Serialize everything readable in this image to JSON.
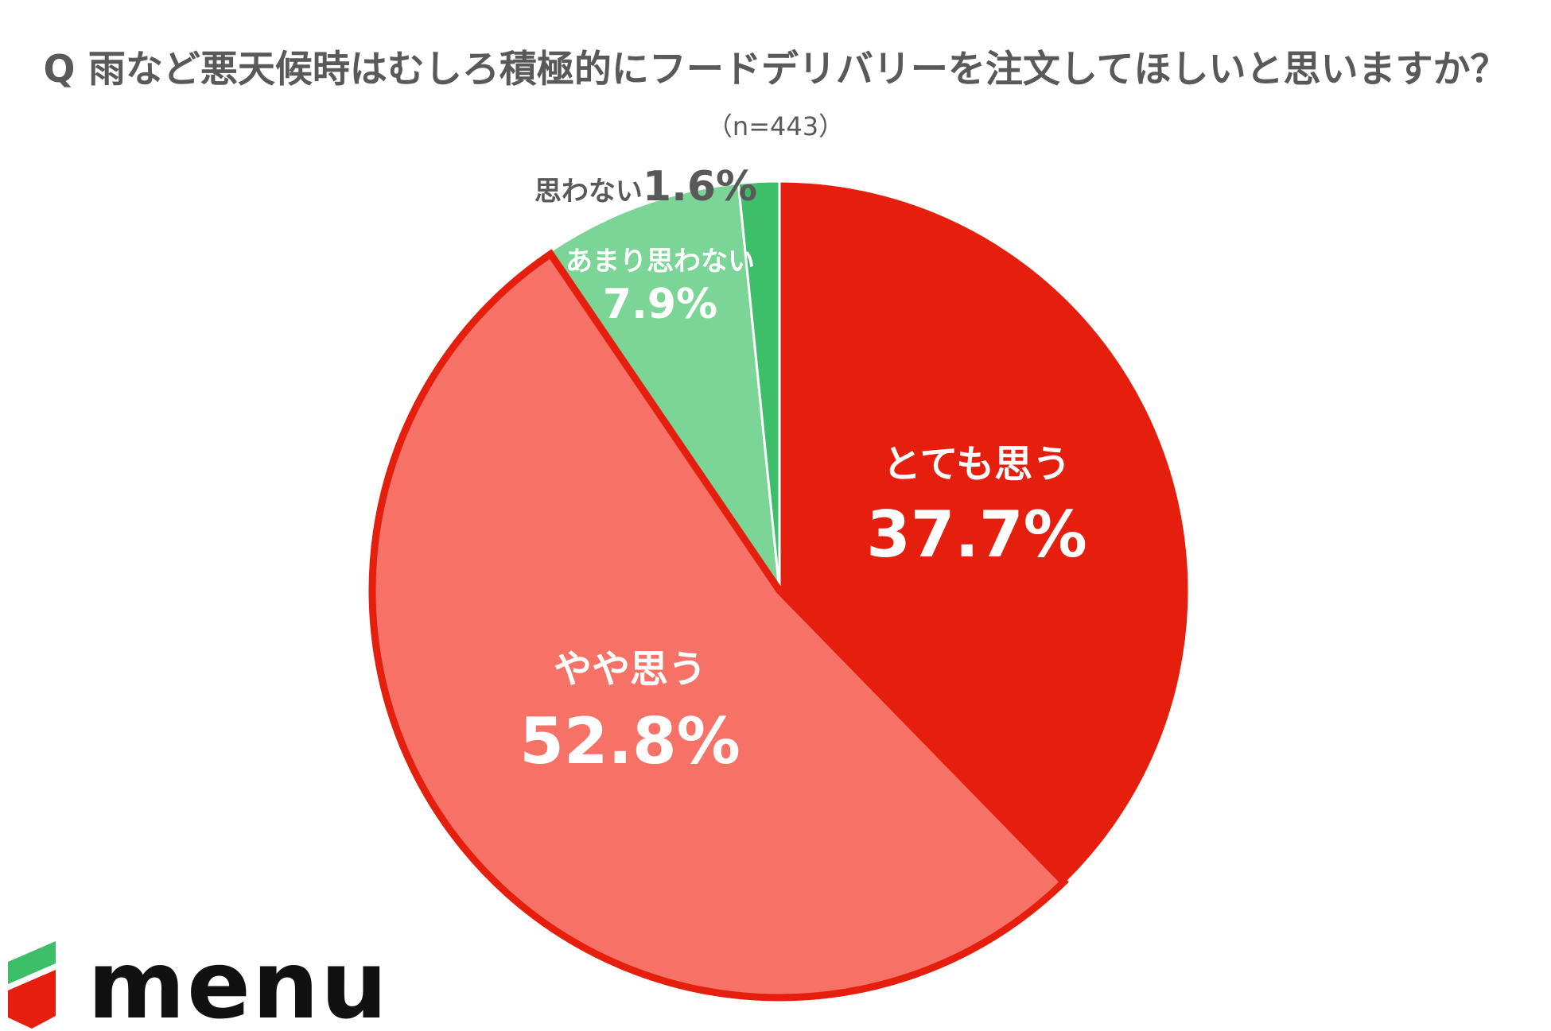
{
  "title": "Q 雨など悪天候時はむしろ積極的にフードデリバリーを注文してほしいと思いますか？",
  "subtitle": "（n=443）",
  "logo": {
    "text": "menu"
  },
  "colors": {
    "very_think": "#e51e0e",
    "somewhat_think": "#f77266",
    "not_much": "#7bd597",
    "not_think": "#3dbf6a",
    "highlight_border": "#e51e0e",
    "label_white": "#ffffff",
    "label_grey": "#595959"
  },
  "chart_data": {
    "type": "pie",
    "title": "Q 雨など悪天候時はむしろ積極的にフードデリバリーを注文してほしいと思いますか？",
    "subtitle": "（n=443）",
    "start_angle": "12 o'clock",
    "direction": "clockwise",
    "slices": [
      {
        "label": "とても思う",
        "value": 37.7,
        "value_label": "37.7%",
        "color": "#e51e0e"
      },
      {
        "label": "やや思う",
        "value": 52.8,
        "value_label": "52.8%",
        "color": "#f77266",
        "highlighted": true
      },
      {
        "label": "あまり思わない",
        "value": 7.9,
        "value_label": "7.9%",
        "color": "#7bd597"
      },
      {
        "label": "思わない",
        "value": 1.6,
        "value_label": "1.6%",
        "color": "#3dbf6a"
      }
    ]
  }
}
